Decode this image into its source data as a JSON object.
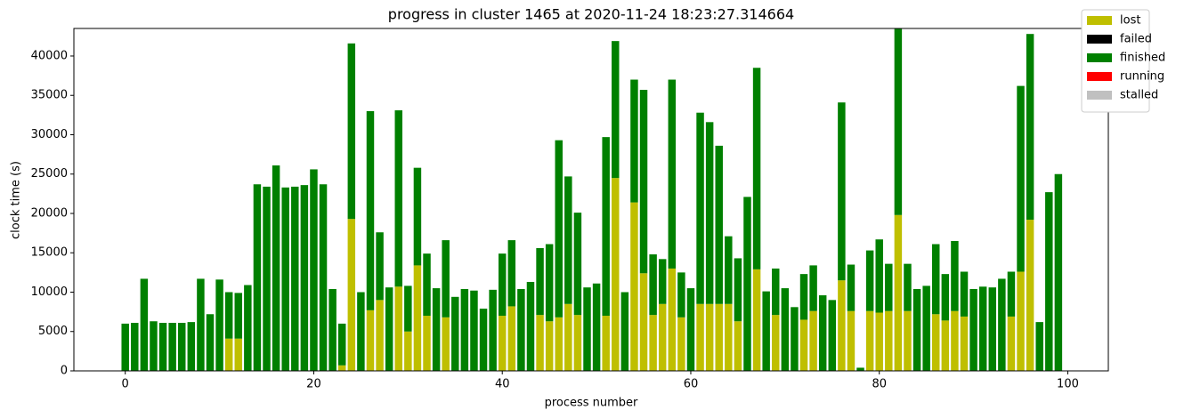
{
  "chart_data": {
    "type": "stacked_bar",
    "title": "progress in cluster 1465 at 2020-11-24 18:23:27.314664",
    "xlabel": "process number",
    "ylabel": "clock time (s)",
    "x": [
      0,
      1,
      2,
      3,
      4,
      5,
      6,
      7,
      8,
      9,
      10,
      11,
      12,
      13,
      14,
      15,
      16,
      17,
      18,
      19,
      20,
      21,
      22,
      23,
      24,
      25,
      26,
      27,
      28,
      29,
      30,
      31,
      32,
      33,
      34,
      35,
      36,
      37,
      38,
      39,
      40,
      41,
      42,
      43,
      44,
      45,
      46,
      47,
      48,
      49,
      50,
      51,
      52,
      53,
      54,
      55,
      56,
      57,
      58,
      59,
      60,
      61,
      62,
      63,
      64,
      65,
      66,
      67,
      68,
      69,
      70,
      71,
      72,
      73,
      74,
      75,
      76,
      77,
      78,
      79,
      80,
      81,
      82,
      83,
      84,
      85,
      86,
      87,
      88,
      89,
      90,
      91,
      92,
      93,
      94,
      95,
      96,
      97,
      98,
      99
    ],
    "series": [
      {
        "name": "lost",
        "color": "#bfbf00",
        "values": [
          0,
          0,
          0,
          0,
          0,
          0,
          0,
          0,
          0,
          0,
          0,
          4100,
          4100,
          0,
          0,
          0,
          0,
          0,
          0,
          0,
          0,
          0,
          0,
          700,
          19300,
          0,
          7700,
          9000,
          0,
          10700,
          5000,
          13400,
          7000,
          0,
          6800,
          0,
          0,
          0,
          0,
          0,
          7000,
          8200,
          0,
          0,
          7100,
          6300,
          6800,
          8500,
          7100,
          0,
          0,
          7000,
          24500,
          0,
          21400,
          12400,
          7100,
          8500,
          13000,
          6800,
          0,
          8500,
          8500,
          8500,
          8500,
          6300,
          0,
          12900,
          0,
          7100,
          0,
          0,
          6500,
          7600,
          0,
          0,
          11500,
          7600,
          0,
          7600,
          7400,
          7600,
          19800,
          7600,
          0,
          0,
          7200,
          6400,
          7600,
          6900,
          0,
          0,
          0,
          0,
          6900,
          12600,
          19200,
          0,
          0,
          0
        ]
      },
      {
        "name": "failed",
        "color": "#000000",
        "values": [
          0,
          0,
          0,
          0,
          0,
          0,
          0,
          0,
          0,
          0,
          0,
          0,
          0,
          0,
          0,
          0,
          0,
          0,
          0,
          0,
          0,
          0,
          0,
          0,
          0,
          0,
          0,
          0,
          0,
          0,
          0,
          0,
          0,
          0,
          0,
          0,
          0,
          0,
          0,
          0,
          0,
          0,
          0,
          0,
          0,
          0,
          0,
          0,
          0,
          0,
          0,
          0,
          0,
          0,
          0,
          0,
          0,
          0,
          0,
          0,
          0,
          0,
          0,
          0,
          0,
          0,
          0,
          0,
          0,
          0,
          0,
          0,
          0,
          0,
          0,
          0,
          0,
          0,
          0,
          0,
          0,
          0,
          0,
          0,
          0,
          0,
          0,
          0,
          0,
          0,
          0,
          0,
          0,
          0,
          0,
          0,
          0,
          0,
          0,
          0
        ]
      },
      {
        "name": "finished",
        "color": "#008000",
        "values": [
          6000,
          6100,
          11700,
          6300,
          6100,
          6100,
          6100,
          6200,
          11700,
          7200,
          11600,
          5900,
          5800,
          10900,
          23700,
          23400,
          26100,
          23300,
          23400,
          23600,
          25600,
          23700,
          10400,
          5300,
          22300,
          10000,
          25300,
          8600,
          10600,
          22400,
          5800,
          12400,
          7900,
          10500,
          9800,
          9400,
          10400,
          10200,
          7900,
          10300,
          7900,
          8400,
          10400,
          11300,
          8500,
          9800,
          22500,
          16200,
          13000,
          10600,
          11100,
          22700,
          17400,
          10000,
          15600,
          23300,
          7700,
          5700,
          24000,
          5700,
          10500,
          24300,
          23100,
          20100,
          8600,
          8000,
          22100,
          25600,
          10100,
          5900,
          10500,
          8100,
          5800,
          5800,
          9600,
          9000,
          22600,
          5900,
          400,
          7700,
          9300,
          6000,
          23700,
          6000,
          10400,
          10800,
          8900,
          5900,
          8900,
          5700,
          10400,
          10700,
          10600,
          11700,
          5700,
          23600,
          23600,
          6200,
          22700,
          25000
        ]
      },
      {
        "name": "running",
        "color": "#ff0000",
        "values": [
          0,
          0,
          0,
          0,
          0,
          0,
          0,
          0,
          0,
          0,
          0,
          0,
          0,
          0,
          0,
          0,
          0,
          0,
          0,
          0,
          0,
          0,
          0,
          0,
          0,
          0,
          0,
          0,
          0,
          0,
          0,
          0,
          0,
          0,
          0,
          0,
          0,
          0,
          0,
          0,
          0,
          0,
          0,
          0,
          0,
          0,
          0,
          0,
          0,
          0,
          0,
          0,
          0,
          0,
          0,
          0,
          0,
          0,
          0,
          0,
          0,
          0,
          0,
          0,
          0,
          0,
          0,
          0,
          0,
          0,
          0,
          0,
          0,
          0,
          0,
          0,
          0,
          0,
          0,
          0,
          0,
          0,
          0,
          0,
          0,
          0,
          0,
          0,
          0,
          0,
          0,
          0,
          0,
          0,
          0,
          0,
          0,
          0,
          0,
          0
        ]
      },
      {
        "name": "stalled",
        "color": "#c0c0c0",
        "values": [
          0,
          0,
          0,
          0,
          0,
          0,
          0,
          0,
          0,
          0,
          0,
          0,
          0,
          0,
          0,
          0,
          0,
          0,
          0,
          0,
          0,
          0,
          0,
          0,
          0,
          0,
          0,
          0,
          0,
          0,
          0,
          0,
          0,
          0,
          0,
          0,
          0,
          0,
          0,
          0,
          0,
          0,
          0,
          0,
          0,
          0,
          0,
          0,
          0,
          0,
          0,
          0,
          0,
          0,
          0,
          0,
          0,
          0,
          0,
          0,
          0,
          0,
          0,
          0,
          0,
          0,
          0,
          0,
          0,
          0,
          0,
          0,
          0,
          0,
          0,
          0,
          0,
          0,
          0,
          0,
          0,
          0,
          0,
          0,
          0,
          0,
          0,
          0,
          0,
          0,
          0,
          0,
          0,
          0,
          0,
          0,
          0,
          0,
          0,
          0
        ]
      }
    ],
    "xlim": [
      -5.45,
      104.3
    ],
    "xticks": [
      0,
      20,
      40,
      60,
      80,
      100
    ],
    "ylim": [
      0,
      43500
    ],
    "yticks": [
      0,
      5000,
      10000,
      15000,
      20000,
      25000,
      30000,
      35000,
      40000
    ],
    "bar_width": 0.8,
    "legend": "upper right"
  }
}
